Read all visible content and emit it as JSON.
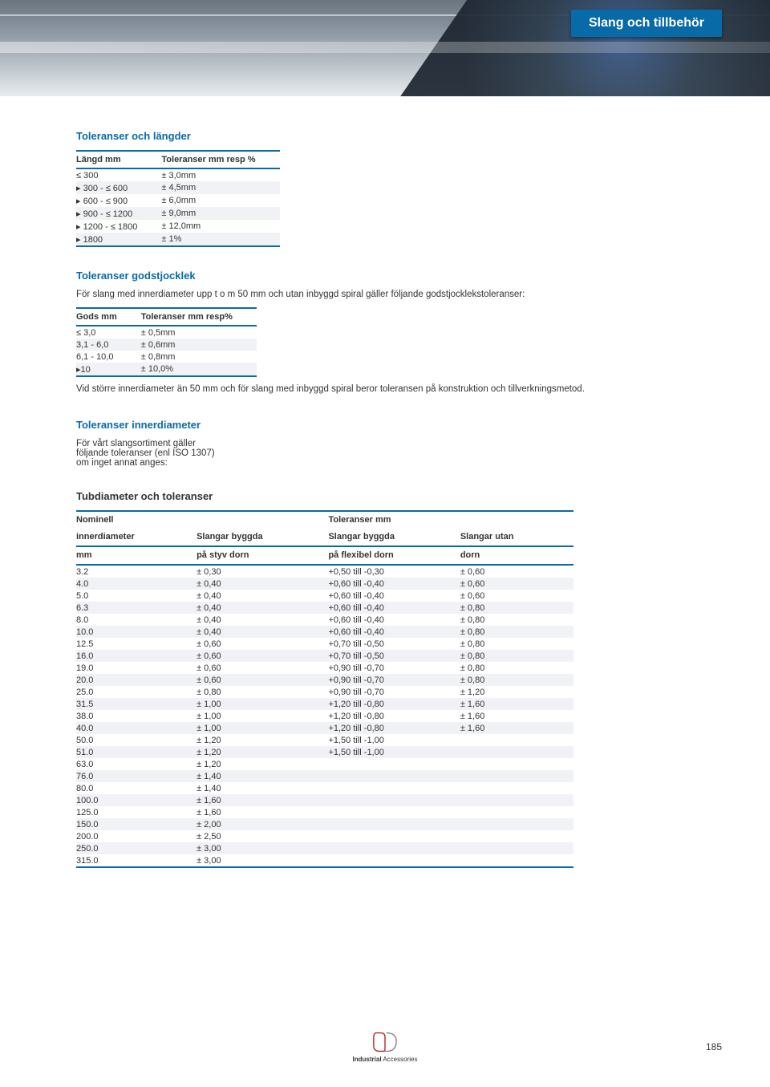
{
  "header": {
    "tab_label": "Slang och tillbehör"
  },
  "section1": {
    "title": "Toleranser och längder",
    "columns": [
      "Längd mm",
      "Toleranser mm resp %"
    ],
    "rows": [
      [
        "≤ 300",
        "± 3,0mm"
      ],
      [
        "▸ 300 - ≤ 600",
        "± 4,5mm"
      ],
      [
        "▸ 600 - ≤ 900",
        "± 6,0mm"
      ],
      [
        "▸ 900 - ≤ 1200",
        "± 9,0mm"
      ],
      [
        "▸ 1200 - ≤ 1800",
        "± 12,0mm"
      ],
      [
        "▸ 1800",
        "± 1%"
      ]
    ]
  },
  "section2": {
    "title": "Toleranser godstjocklek",
    "intro": "För slang med innerdiameter upp t o m 50 mm och utan inbyggd spiral gäller följande godstjocklekstoleranser:",
    "columns": [
      "Gods mm",
      "Toleranser mm resp%"
    ],
    "rows": [
      [
        "≤ 3,0",
        "± 0,5mm"
      ],
      [
        "3,1 - 6,0",
        "± 0,6mm"
      ],
      [
        "6,1 - 10,0",
        "± 0,8mm"
      ],
      [
        "▸10",
        "± 10,0%"
      ]
    ],
    "after_note": "Vid större innerdiameter än 50 mm och för slang med inbyggd spiral beror toleransen på konstruktion och tillverkningsmetod."
  },
  "section3": {
    "title": "Toleranser innerdiameter",
    "intro": "För vårt slangsortiment gäller\nföljande toleranser (enl ISO 1307)\nom inget annat anges:"
  },
  "section4": {
    "title": "Tubdiameter och toleranser",
    "header_row1": [
      "Nominell",
      "",
      "Toleranser mm",
      ""
    ],
    "header_row2": [
      "innerdiameter",
      "Slangar byggda",
      "Slangar byggda",
      "Slangar utan"
    ],
    "header_row3": [
      "mm",
      "på styv dorn",
      "på flexibel dorn",
      "dorn"
    ],
    "rows": [
      [
        "3.2",
        "± 0,30",
        "+0,50 till -0,30",
        "± 0,60"
      ],
      [
        "4.0",
        "± 0,40",
        "+0,60 till -0,40",
        "± 0,60"
      ],
      [
        "5.0",
        "± 0,40",
        "+0,60 till -0,40",
        "± 0,60"
      ],
      [
        "6.3",
        "± 0,40",
        "+0,60 till -0,40",
        "± 0,80"
      ],
      [
        "8.0",
        "± 0,40",
        "+0,60 till -0,40",
        "± 0,80"
      ],
      [
        "10.0",
        "± 0,40",
        "+0,60 till -0,40",
        "± 0,80"
      ],
      [
        "12.5",
        "± 0,60",
        "+0,70 till -0,50",
        "± 0,80"
      ],
      [
        "16.0",
        "± 0,60",
        "+0,70 till -0,50",
        "± 0,80"
      ],
      [
        "19.0",
        "± 0,60",
        "+0,90 till -0,70",
        "± 0,80"
      ],
      [
        "20.0",
        "± 0,60",
        "+0,90 till -0,70",
        "± 0,80"
      ],
      [
        "25.0",
        "± 0,80",
        "+0,90 till -0,70",
        "± 1,20"
      ],
      [
        "31.5",
        "± 1,00",
        "+1,20 till -0,80",
        "± 1,60"
      ],
      [
        "38.0",
        "± 1,00",
        "+1,20 till -0,80",
        "± 1,60"
      ],
      [
        "40.0",
        "± 1,00",
        "+1,20 till -0,80",
        "± 1,60"
      ],
      [
        "50.0",
        "± 1,20",
        "+1,50 till -1,00",
        ""
      ],
      [
        "51.0",
        "± 1,20",
        "+1,50 till -1,00",
        ""
      ],
      [
        "63.0",
        "± 1,20",
        "",
        ""
      ],
      [
        "76.0",
        "± 1,40",
        "",
        ""
      ],
      [
        "80.0",
        "± 1,40",
        "",
        ""
      ],
      [
        "100.0",
        "± 1,60",
        "",
        ""
      ],
      [
        "125.0",
        "± 1,60",
        "",
        ""
      ],
      [
        "150.0",
        "± 2,00",
        "",
        ""
      ],
      [
        "200.0",
        "± 2,50",
        "",
        ""
      ],
      [
        "250.0",
        "± 3,00",
        "",
        ""
      ],
      [
        "315.0",
        "± 3,00",
        "",
        ""
      ]
    ]
  },
  "footer": {
    "page": "185",
    "logo_text_1": "Industrial",
    "logo_text_2": "Accessories"
  },
  "colors": {
    "accent": "#086aa6",
    "alt_row": "#f0f2f5"
  }
}
